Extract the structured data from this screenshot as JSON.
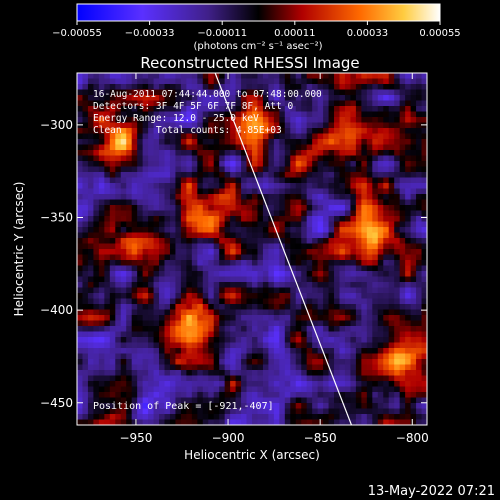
{
  "chart_data": {
    "type": "heatmap",
    "title": "Reconstructed RHESSI Image",
    "xlabel": "Heliocentric X (arcsec)",
    "ylabel": "Heliocentric Y (arcsec)",
    "xlim": [
      -982,
      -792
    ],
    "ylim": [
      -462,
      -272
    ],
    "x_ticks": [
      -950,
      -900,
      -850,
      -800
    ],
    "y_ticks": [
      -300,
      -350,
      -400,
      -450
    ],
    "x_tick_labels": [
      "−950",
      "−900",
      "−850",
      "−800"
    ],
    "y_tick_labels": [
      "−300",
      "−350",
      "−400",
      "−450"
    ],
    "colorbar": {
      "range": [
        -0.00055,
        0.00055
      ],
      "ticks": [
        -0.00055,
        -0.00033,
        -0.00011,
        0.00011,
        0.00033,
        0.00055
      ],
      "tick_labels": [
        "−0.00055",
        "−0.00033",
        "−0.00011",
        "0.00011",
        "0.00033",
        "0.00055"
      ],
      "unit_label": "(photons cm⁻² s⁻¹ asec⁻²)",
      "colors": [
        "#0000ff",
        "#7a3cff",
        "#000000",
        "#cc0000",
        "#ff8800",
        "#ffff80",
        "#ffffff"
      ]
    },
    "annotations": {
      "time_range": "16-Aug-2011 07:44:44.000 to 07:48:00.000",
      "detectors": "Detectors: 3F 4F 5F 6F 7F 8F, Att 0",
      "energy": "Energy Range: 12.0 - 25.0 keV",
      "method": "Clean      Total counts: 4.85E+03",
      "peak": "Position of Peak = [-921,-407]"
    },
    "limb_line": {
      "x": [
        -907,
        -833
      ],
      "y": [
        -272,
        -462
      ]
    },
    "bright_regions": [
      {
        "x": -960,
        "y": -315,
        "intensity": 0.00045
      },
      {
        "x": -945,
        "y": -360,
        "intensity": 0.00035
      },
      {
        "x": -920,
        "y": -407,
        "intensity": 0.00055
      },
      {
        "x": -905,
        "y": -345,
        "intensity": 0.0003
      },
      {
        "x": -885,
        "y": -300,
        "intensity": 0.00035
      },
      {
        "x": -860,
        "y": -320,
        "intensity": 0.00028
      },
      {
        "x": -830,
        "y": -300,
        "intensity": 0.0003
      },
      {
        "x": -820,
        "y": -360,
        "intensity": 0.0004
      },
      {
        "x": -805,
        "y": -420,
        "intensity": 0.00038
      },
      {
        "x": -850,
        "y": -395,
        "intensity": 0.0002
      }
    ]
  },
  "footer": {
    "timestamp": "13-May-2022 07:21"
  }
}
